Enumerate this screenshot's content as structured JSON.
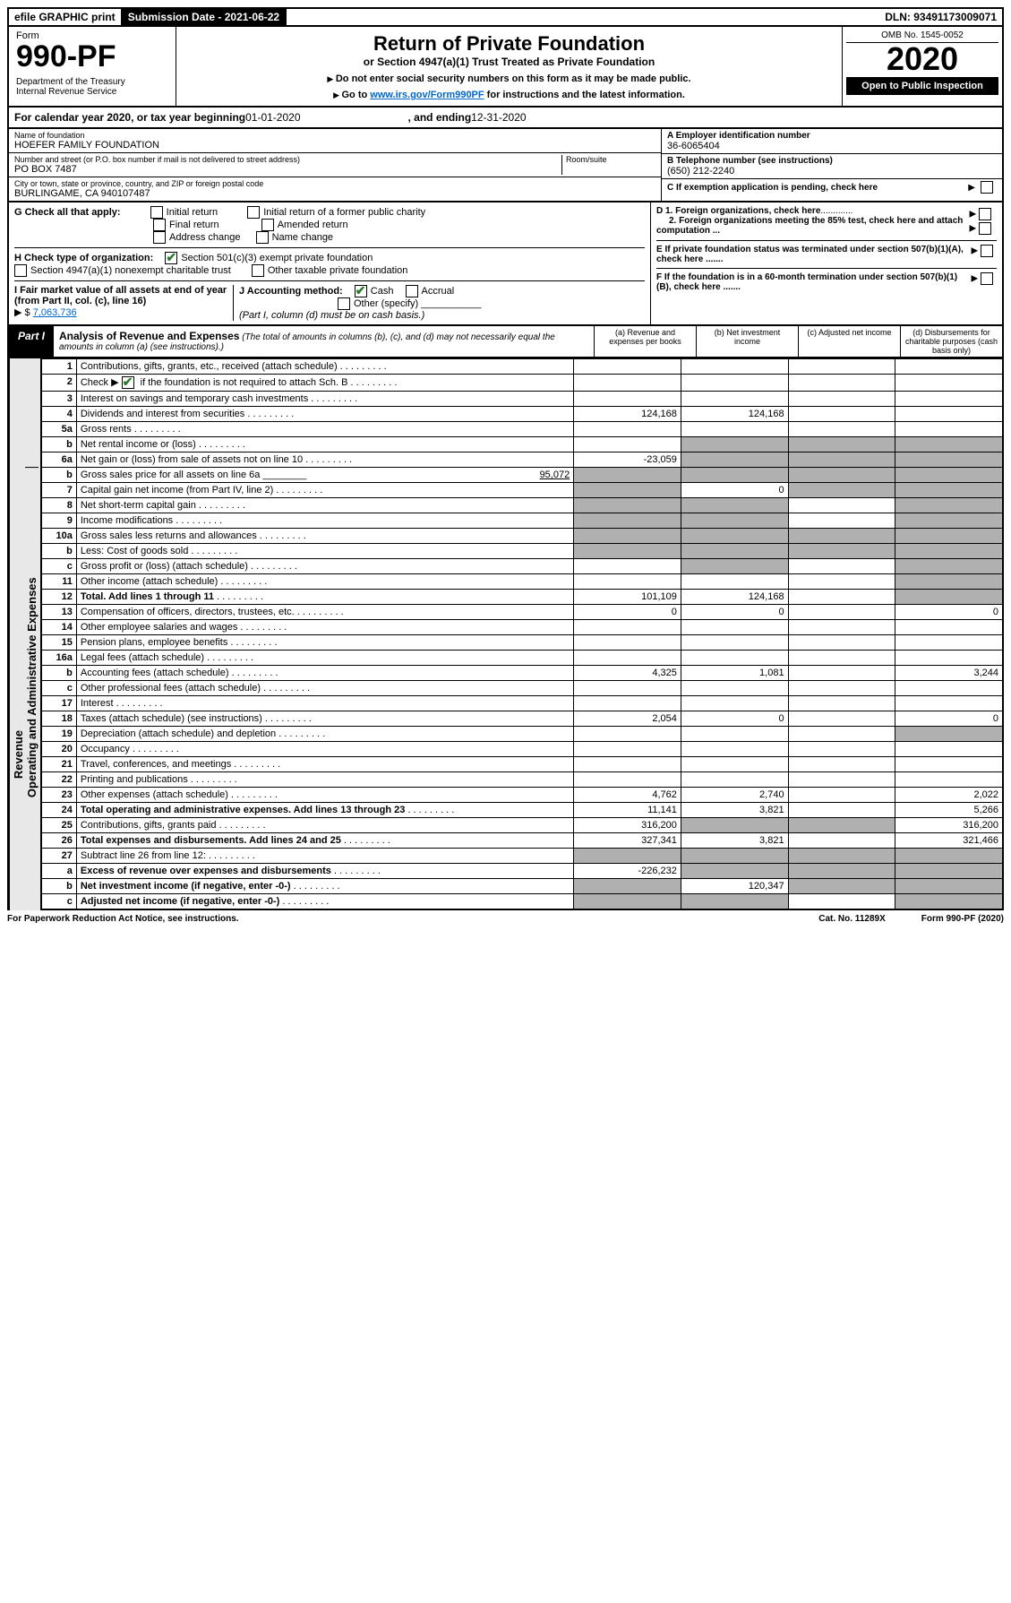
{
  "topbar": {
    "efile": "efile GRAPHIC print",
    "subdate_label": "Submission Date - ",
    "subdate": "2021-06-22",
    "dln_label": "DLN: ",
    "dln": "93491173009071"
  },
  "header": {
    "form_word": "Form",
    "form_no": "990-PF",
    "dept": "Department of the Treasury",
    "irs": "Internal Revenue Service",
    "title": "Return of Private Foundation",
    "subtitle": "or Section 4947(a)(1) Trust Treated as Private Foundation",
    "note1": "Do not enter social security numbers on this form as it may be made public.",
    "note2_pre": "Go to ",
    "note2_link": "www.irs.gov/Form990PF",
    "note2_post": " for instructions and the latest information.",
    "omb": "OMB No. 1545-0052",
    "year": "2020",
    "open": "Open to Public Inspection"
  },
  "cal": {
    "pre": "For calendar year 2020, or tax year beginning ",
    "begin": "01-01-2020",
    "mid": ", and ending ",
    "end": "12-31-2020"
  },
  "info": {
    "name_label": "Name of foundation",
    "name": "HOEFER FAMILY FOUNDATION",
    "addr_label": "Number and street (or P.O. box number if mail is not delivered to street address)",
    "room_label": "Room/suite",
    "addr": "PO BOX 7487",
    "city_label": "City or town, state or province, country, and ZIP or foreign postal code",
    "city": "BURLINGAME, CA  940107487",
    "a_label": "A Employer identification number",
    "a": "36-6065404",
    "b_label": "B Telephone number (see instructions)",
    "b": "(650) 212-2240",
    "c_label": "C If exemption application is pending, check here"
  },
  "g": {
    "label": "G Check all that apply:",
    "opts": [
      "Initial return",
      "Initial return of a former public charity",
      "Final return",
      "Amended return",
      "Address change",
      "Name change"
    ]
  },
  "h": {
    "label": "H Check type of organization:",
    "o1": "Section 501(c)(3) exempt private foundation",
    "o2": "Section 4947(a)(1) nonexempt charitable trust",
    "o3": "Other taxable private foundation"
  },
  "i": {
    "label": "I Fair market value of all assets at end of year (from Part II, col. (c), line 16)",
    "arrow": "▶ $",
    "val": "7,063,736"
  },
  "j": {
    "label": "J Accounting method:",
    "cash": "Cash",
    "accrual": "Accrual",
    "other": "Other (specify)",
    "note": "(Part I, column (d) must be on cash basis.)"
  },
  "d": {
    "d1": "D 1. Foreign organizations, check here",
    "d2": "2. Foreign organizations meeting the 85% test, check here and attach computation ..."
  },
  "e": {
    "label": "E  If private foundation status was terminated under section 507(b)(1)(A), check here ......."
  },
  "f": {
    "label": "F  If the foundation is in a 60-month termination under section 507(b)(1)(B), check here ......."
  },
  "part1": {
    "tab": "Part I",
    "title": "Analysis of Revenue and Expenses",
    "title_note": "(The total of amounts in columns (b), (c), and (d) may not necessarily equal the amounts in column (a) (see instructions).)",
    "cols": {
      "a": "(a) Revenue and expenses per books",
      "b": "(b) Net investment income",
      "c": "(c) Adjusted net income",
      "d": "(d) Disbursements for charitable purposes (cash basis only)"
    }
  },
  "side": {
    "rev": "Revenue",
    "exp": "Operating and Administrative Expenses"
  },
  "rows": [
    {
      "n": "1",
      "d": "Contributions, gifts, grants, etc., received (attach schedule)"
    },
    {
      "n": "2",
      "d_pre": "Check ▶ ",
      "d_ck": true,
      "d_post": " if the foundation is not required to attach Sch. B"
    },
    {
      "n": "3",
      "d": "Interest on savings and temporary cash investments"
    },
    {
      "n": "4",
      "d": "Dividends and interest from securities",
      "a": "124,168",
      "b": "124,168"
    },
    {
      "n": "5a",
      "d": "Gross rents"
    },
    {
      "n": "b",
      "d": "Net rental income or (loss)",
      "shade_bcd": true
    },
    {
      "n": "6a",
      "d": "Net gain or (loss) from sale of assets not on line 10",
      "a": "-23,059",
      "shade_bcd": true
    },
    {
      "n": "b",
      "d": "Gross sales price for all assets on line 6a",
      "inline": "95,072",
      "shade_all": true
    },
    {
      "n": "7",
      "d": "Capital gain net income (from Part IV, line 2)",
      "b": "0",
      "shade_a": true,
      "shade_cd": true
    },
    {
      "n": "8",
      "d": "Net short-term capital gain",
      "shade_ab": true,
      "shade_d": true
    },
    {
      "n": "9",
      "d": "Income modifications",
      "shade_ab": true,
      "shade_d": true
    },
    {
      "n": "10a",
      "d": "Gross sales less returns and allowances",
      "shade_all": true
    },
    {
      "n": "b",
      "d": "Less: Cost of goods sold",
      "shade_all": true
    },
    {
      "n": "c",
      "d": "Gross profit or (loss) (attach schedule)",
      "shade_b": true,
      "shade_d": true
    },
    {
      "n": "11",
      "d": "Other income (attach schedule)",
      "shade_d": true
    },
    {
      "n": "12",
      "d": "Total. Add lines 1 through 11",
      "bold": true,
      "a": "101,109",
      "b": "124,168",
      "shade_d": true
    },
    {
      "n": "13",
      "d": "Compensation of officers, directors, trustees, etc.",
      "a": "0",
      "b": "0",
      "d4": "0"
    },
    {
      "n": "14",
      "d": "Other employee salaries and wages"
    },
    {
      "n": "15",
      "d": "Pension plans, employee benefits"
    },
    {
      "n": "16a",
      "d": "Legal fees (attach schedule)"
    },
    {
      "n": "b",
      "d": "Accounting fees (attach schedule)",
      "a": "4,325",
      "b": "1,081",
      "d4": "3,244"
    },
    {
      "n": "c",
      "d": "Other professional fees (attach schedule)"
    },
    {
      "n": "17",
      "d": "Interest"
    },
    {
      "n": "18",
      "d": "Taxes (attach schedule) (see instructions)",
      "a": "2,054",
      "b": "0",
      "d4": "0"
    },
    {
      "n": "19",
      "d": "Depreciation (attach schedule) and depletion",
      "shade_d": true
    },
    {
      "n": "20",
      "d": "Occupancy"
    },
    {
      "n": "21",
      "d": "Travel, conferences, and meetings"
    },
    {
      "n": "22",
      "d": "Printing and publications"
    },
    {
      "n": "23",
      "d": "Other expenses (attach schedule)",
      "a": "4,762",
      "b": "2,740",
      "d4": "2,022"
    },
    {
      "n": "24",
      "d": "Total operating and administrative expenses. Add lines 13 through 23",
      "bold": true,
      "a": "11,141",
      "b": "3,821",
      "d4": "5,266"
    },
    {
      "n": "25",
      "d": "Contributions, gifts, grants paid",
      "a": "316,200",
      "shade_bc": true,
      "d4": "316,200"
    },
    {
      "n": "26",
      "d": "Total expenses and disbursements. Add lines 24 and 25",
      "bold": true,
      "a": "327,341",
      "b": "3,821",
      "d4": "321,466"
    },
    {
      "n": "27",
      "d": "Subtract line 26 from line 12:",
      "shade_all": true
    },
    {
      "n": "a",
      "d": "Excess of revenue over expenses and disbursements",
      "bold": true,
      "a": "-226,232",
      "shade_bcd": true
    },
    {
      "n": "b",
      "d": "Net investment income (if negative, enter -0-)",
      "bold": true,
      "b": "120,347",
      "shade_a": true,
      "shade_cd": true
    },
    {
      "n": "c",
      "d": "Adjusted net income (if negative, enter -0-)",
      "bold": true,
      "shade_ab": true,
      "shade_d": true
    }
  ],
  "footer": {
    "left": "For Paperwork Reduction Act Notice, see instructions.",
    "mid": "Cat. No. 11289X",
    "right": "Form 990-PF (2020)"
  }
}
